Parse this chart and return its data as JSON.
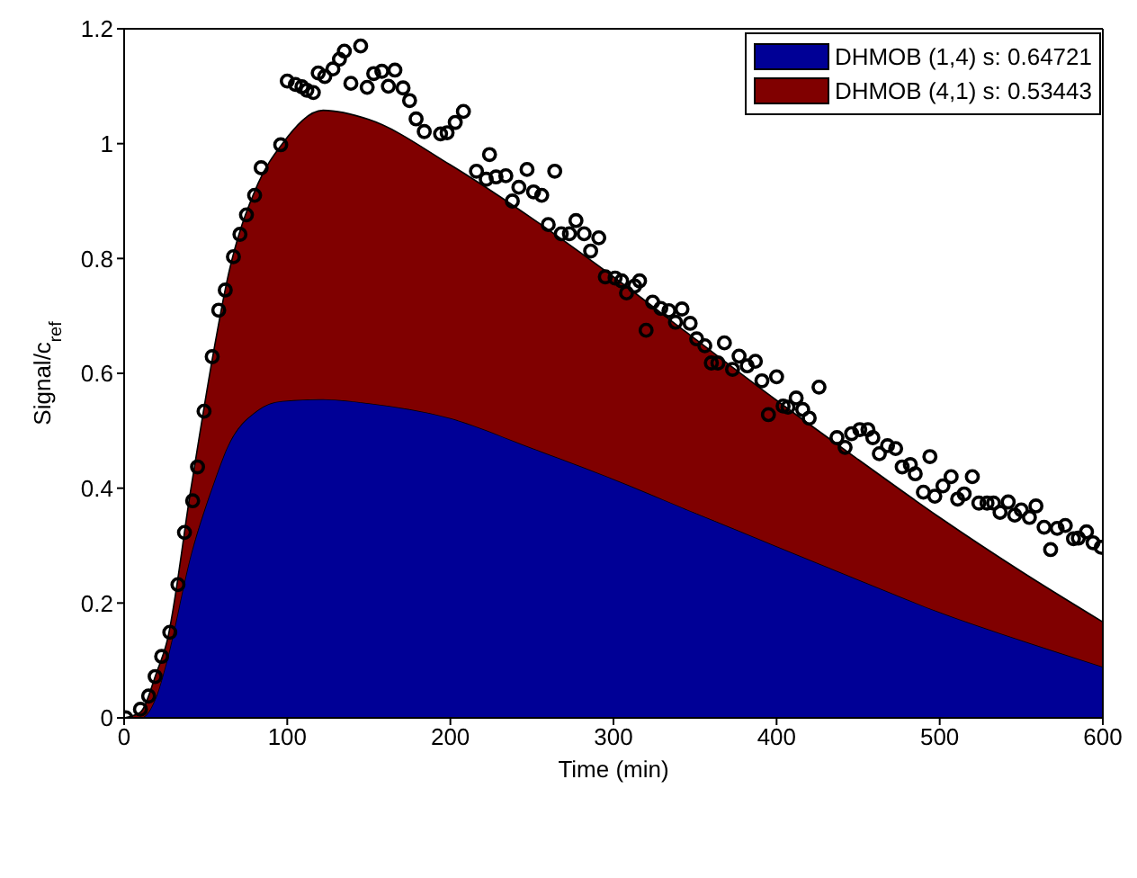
{
  "chart_data": {
    "type": "area",
    "stacked": true,
    "xlabel": "Time (min)",
    "ylabel": "Signal/c$_{ref}$",
    "xlim": [
      0,
      600
    ],
    "xticks": [
      0,
      100,
      200,
      300,
      400,
      500,
      600
    ],
    "ylim": [
      0,
      1.2
    ],
    "yticks": [
      0,
      0.2,
      0.4,
      0.6,
      0.8,
      1,
      1.2
    ],
    "legend": "top right",
    "x": [
      0,
      10,
      20,
      26,
      41,
      55,
      63,
      82,
      97,
      122,
      150,
      200,
      250,
      300,
      350,
      400,
      450,
      500,
      550,
      600
    ],
    "series": [
      {
        "name": "DHMOB (1,4) s: 0.64721",
        "color": "#000096",
        "values": [
          0,
          0,
          0.04,
          0.098,
          0.285,
          0.41,
          0.47,
          0.536,
          0.552,
          0.555,
          0.548,
          0.522,
          0.47,
          0.416,
          0.357,
          0.299,
          0.241,
          0.184,
          0.135,
          0.089
        ]
      },
      {
        "name": "DHMOB (4,1) s: 0.53443",
        "color": "#800000",
        "values": [
          0,
          0.01,
          0.04,
          0.032,
          0.115,
          0.23,
          0.29,
          0.394,
          0.448,
          0.503,
          0.494,
          0.441,
          0.4,
          0.352,
          0.303,
          0.254,
          0.209,
          0.165,
          0.12,
          0.078
        ]
      },
      {
        "type": "scatter",
        "color": "#000000",
        "marker": "circle",
        "x": [
          1,
          10,
          15,
          19,
          23,
          28,
          33,
          37,
          42,
          45,
          49,
          54,
          58,
          62,
          67,
          71,
          75,
          80,
          84,
          96,
          100,
          105,
          109,
          112,
          116,
          119,
          123,
          128,
          132,
          135,
          139,
          145,
          149,
          153,
          158,
          162,
          166,
          171,
          175,
          179,
          184,
          194,
          198,
          203,
          208,
          216,
          222,
          224,
          228,
          234,
          238,
          242,
          247,
          251,
          256,
          260,
          264,
          268,
          273,
          277,
          282,
          286,
          291,
          295,
          301,
          305,
          308,
          313,
          316,
          320,
          324,
          329,
          334,
          338,
          342,
          347,
          351,
          356,
          360,
          364,
          368,
          373,
          377,
          382,
          387,
          391,
          395,
          400,
          404,
          407,
          412,
          416,
          420,
          426,
          437,
          442,
          446,
          451,
          456,
          459,
          463,
          468,
          473,
          477,
          482,
          485,
          490,
          494,
          497,
          502,
          507,
          511,
          515,
          520,
          524,
          529,
          533,
          537,
          542,
          546,
          550,
          555,
          559,
          564,
          568,
          572,
          577,
          582,
          585,
          590,
          594,
          599
        ],
        "values": [
          0,
          0.015,
          0.038,
          0.072,
          0.107,
          0.149,
          0.232,
          0.323,
          0.378,
          0.437,
          0.534,
          0.629,
          0.71,
          0.745,
          0.803,
          0.842,
          0.876,
          0.91,
          0.958,
          0.998,
          1.109,
          1.103,
          1.099,
          1.093,
          1.089,
          1.123,
          1.117,
          1.13,
          1.147,
          1.161,
          1.105,
          1.17,
          1.098,
          1.122,
          1.126,
          1.1,
          1.128,
          1.097,
          1.075,
          1.043,
          1.021,
          1.017,
          1.019,
          1.037,
          1.056,
          0.952,
          0.938,
          0.981,
          0.942,
          0.944,
          0.9,
          0.924,
          0.955,
          0.916,
          0.91,
          0.859,
          0.952,
          0.843,
          0.843,
          0.866,
          0.843,
          0.813,
          0.836,
          0.768,
          0.766,
          0.761,
          0.74,
          0.752,
          0.761,
          0.675,
          0.724,
          0.713,
          0.709,
          0.689,
          0.712,
          0.687,
          0.66,
          0.648,
          0.618,
          0.618,
          0.653,
          0.607,
          0.63,
          0.613,
          0.621,
          0.587,
          0.528,
          0.594,
          0.543,
          0.541,
          0.557,
          0.537,
          0.522,
          0.576,
          0.488,
          0.471,
          0.495,
          0.502,
          0.502,
          0.488,
          0.46,
          0.474,
          0.469,
          0.437,
          0.441,
          0.425,
          0.393,
          0.455,
          0.386,
          0.404,
          0.42,
          0.381,
          0.39,
          0.42,
          0.374,
          0.374,
          0.374,
          0.358,
          0.376,
          0.353,
          0.362,
          0.349,
          0.369,
          0.332,
          0.293,
          0.33,
          0.335,
          0.312,
          0.313,
          0.324,
          0.305,
          0.297
        ]
      }
    ]
  }
}
